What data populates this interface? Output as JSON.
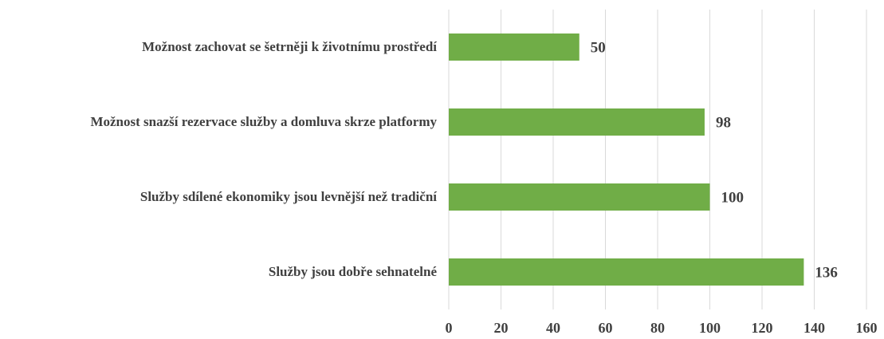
{
  "chart_data": {
    "type": "bar",
    "orientation": "horizontal",
    "categories": [
      "Možnost zachovat se šetrněji k životnímu prostředí",
      "Možnost snazší rezervace služby a domluva skrze platformy",
      "Služby sdílené ekonomiky jsou levnější než tradiční ",
      "Služby jsou dobře sehnatelné"
    ],
    "values": [
      50,
      98,
      100,
      136
    ],
    "color": "#70ad47",
    "xlim": [
      0,
      160
    ],
    "xticks": [
      0,
      20,
      40,
      60,
      80,
      100,
      120,
      140,
      160
    ],
    "grid": true
  }
}
